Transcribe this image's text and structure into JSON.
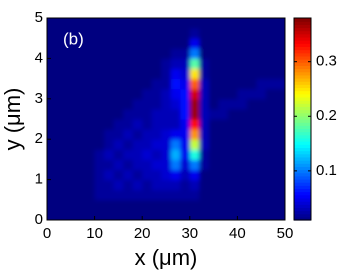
{
  "chart_data": {
    "type": "heatmap",
    "annotation": "(b)",
    "xlabel": "x (μm)",
    "ylabel": "y (μm)",
    "xlim": [
      0,
      50
    ],
    "ylim": [
      0,
      5
    ],
    "xticks": [
      0,
      10,
      20,
      30,
      40,
      50
    ],
    "yticks": [
      0,
      1,
      2,
      3,
      4,
      5
    ],
    "colormap": "jet",
    "clim": [
      0.01,
      0.38
    ],
    "colorbar_ticks": [
      0.1,
      0.2,
      0.3
    ],
    "x": [
      1,
      3,
      5,
      7,
      9,
      11,
      13,
      15,
      17,
      19,
      21,
      23,
      25,
      27,
      29,
      31,
      33,
      35,
      37,
      39,
      41,
      43,
      45,
      47,
      49
    ],
    "y": [
      0.125,
      0.375,
      0.625,
      0.875,
      1.125,
      1.375,
      1.625,
      1.875,
      2.125,
      2.375,
      2.625,
      2.875,
      3.125,
      3.375,
      3.625,
      3.875,
      4.125,
      4.375,
      4.625,
      4.875
    ],
    "z": [
      [
        0.01,
        0.01,
        0.01,
        0.01,
        0.01,
        0.01,
        0.01,
        0.01,
        0.01,
        0.01,
        0.01,
        0.01,
        0.01,
        0.01,
        0.01,
        0.01,
        0.01,
        0.01,
        0.01,
        0.01,
        0.01,
        0.01,
        0.01,
        0.01,
        0.01
      ],
      [
        0.01,
        0.01,
        0.01,
        0.01,
        0.01,
        0.01,
        0.01,
        0.01,
        0.01,
        0.01,
        0.01,
        0.01,
        0.01,
        0.01,
        0.01,
        0.01,
        0.01,
        0.01,
        0.01,
        0.01,
        0.01,
        0.01,
        0.01,
        0.01,
        0.01
      ],
      [
        0.01,
        0.01,
        0.01,
        0.01,
        0.01,
        0.02,
        0.02,
        0.02,
        0.02,
        0.02,
        0.02,
        0.02,
        0.02,
        0.02,
        0.02,
        0.02,
        0.01,
        0.01,
        0.01,
        0.01,
        0.01,
        0.01,
        0.01,
        0.01,
        0.01
      ],
      [
        0.01,
        0.01,
        0.01,
        0.01,
        0.01,
        0.02,
        0.02,
        0.03,
        0.02,
        0.03,
        0.02,
        0.03,
        0.03,
        0.03,
        0.02,
        0.03,
        0.01,
        0.01,
        0.01,
        0.01,
        0.01,
        0.01,
        0.01,
        0.01,
        0.01
      ],
      [
        0.01,
        0.01,
        0.01,
        0.01,
        0.01,
        0.02,
        0.03,
        0.02,
        0.03,
        0.02,
        0.03,
        0.03,
        0.04,
        0.05,
        0.03,
        0.05,
        0.01,
        0.01,
        0.01,
        0.01,
        0.01,
        0.01,
        0.01,
        0.01,
        0.01
      ],
      [
        0.01,
        0.01,
        0.01,
        0.01,
        0.01,
        0.02,
        0.02,
        0.03,
        0.02,
        0.03,
        0.03,
        0.04,
        0.04,
        0.1,
        0.04,
        0.1,
        0.02,
        0.01,
        0.01,
        0.01,
        0.01,
        0.01,
        0.01,
        0.01,
        0.01
      ],
      [
        0.01,
        0.01,
        0.01,
        0.01,
        0.01,
        0.02,
        0.03,
        0.02,
        0.03,
        0.03,
        0.04,
        0.03,
        0.04,
        0.12,
        0.05,
        0.16,
        0.02,
        0.01,
        0.01,
        0.01,
        0.01,
        0.01,
        0.01,
        0.01,
        0.01
      ],
      [
        0.01,
        0.01,
        0.01,
        0.01,
        0.01,
        0.01,
        0.02,
        0.03,
        0.02,
        0.03,
        0.03,
        0.04,
        0.04,
        0.1,
        0.05,
        0.22,
        0.03,
        0.01,
        0.01,
        0.01,
        0.01,
        0.01,
        0.01,
        0.01,
        0.01
      ],
      [
        0.01,
        0.01,
        0.01,
        0.01,
        0.01,
        0.01,
        0.02,
        0.02,
        0.03,
        0.02,
        0.03,
        0.03,
        0.04,
        0.05,
        0.05,
        0.28,
        0.03,
        0.01,
        0.01,
        0.01,
        0.01,
        0.01,
        0.01,
        0.01,
        0.01
      ],
      [
        0.01,
        0.01,
        0.01,
        0.01,
        0.01,
        0.01,
        0.01,
        0.02,
        0.02,
        0.03,
        0.02,
        0.03,
        0.03,
        0.03,
        0.05,
        0.33,
        0.03,
        0.01,
        0.01,
        0.01,
        0.01,
        0.01,
        0.01,
        0.01,
        0.01
      ],
      [
        0.01,
        0.01,
        0.01,
        0.01,
        0.01,
        0.01,
        0.01,
        0.01,
        0.02,
        0.02,
        0.02,
        0.03,
        0.03,
        0.03,
        0.06,
        0.37,
        0.03,
        0.02,
        0.02,
        0.01,
        0.01,
        0.01,
        0.01,
        0.01,
        0.01
      ],
      [
        0.01,
        0.01,
        0.01,
        0.01,
        0.01,
        0.01,
        0.01,
        0.01,
        0.01,
        0.02,
        0.02,
        0.02,
        0.03,
        0.04,
        0.06,
        0.37,
        0.03,
        0.01,
        0.02,
        0.02,
        0.02,
        0.01,
        0.01,
        0.01,
        0.01
      ],
      [
        0.01,
        0.01,
        0.01,
        0.01,
        0.01,
        0.01,
        0.01,
        0.01,
        0.01,
        0.01,
        0.02,
        0.02,
        0.03,
        0.05,
        0.06,
        0.35,
        0.03,
        0.01,
        0.01,
        0.01,
        0.02,
        0.02,
        0.02,
        0.01,
        0.01
      ],
      [
        0.01,
        0.01,
        0.01,
        0.01,
        0.01,
        0.01,
        0.01,
        0.01,
        0.01,
        0.01,
        0.01,
        0.02,
        0.02,
        0.06,
        0.05,
        0.3,
        0.03,
        0.01,
        0.01,
        0.01,
        0.01,
        0.01,
        0.02,
        0.02,
        0.02
      ],
      [
        0.01,
        0.01,
        0.01,
        0.01,
        0.01,
        0.01,
        0.01,
        0.01,
        0.01,
        0.01,
        0.01,
        0.01,
        0.02,
        0.05,
        0.04,
        0.25,
        0.02,
        0.01,
        0.01,
        0.01,
        0.01,
        0.01,
        0.01,
        0.01,
        0.01
      ],
      [
        0.01,
        0.01,
        0.01,
        0.01,
        0.01,
        0.01,
        0.01,
        0.01,
        0.01,
        0.01,
        0.01,
        0.01,
        0.02,
        0.03,
        0.03,
        0.18,
        0.02,
        0.01,
        0.01,
        0.01,
        0.01,
        0.01,
        0.01,
        0.01,
        0.01
      ],
      [
        0.01,
        0.01,
        0.01,
        0.01,
        0.01,
        0.01,
        0.01,
        0.01,
        0.01,
        0.01,
        0.01,
        0.01,
        0.01,
        0.02,
        0.02,
        0.1,
        0.01,
        0.01,
        0.01,
        0.01,
        0.01,
        0.01,
        0.01,
        0.01,
        0.01
      ],
      [
        0.01,
        0.01,
        0.01,
        0.01,
        0.01,
        0.01,
        0.01,
        0.01,
        0.01,
        0.01,
        0.01,
        0.01,
        0.01,
        0.01,
        0.01,
        0.05,
        0.01,
        0.01,
        0.01,
        0.01,
        0.01,
        0.01,
        0.01,
        0.01,
        0.01
      ],
      [
        0.01,
        0.01,
        0.01,
        0.01,
        0.01,
        0.01,
        0.01,
        0.01,
        0.01,
        0.01,
        0.01,
        0.01,
        0.01,
        0.01,
        0.01,
        0.02,
        0.01,
        0.01,
        0.01,
        0.01,
        0.01,
        0.01,
        0.01,
        0.01,
        0.01
      ],
      [
        0.01,
        0.01,
        0.01,
        0.01,
        0.01,
        0.01,
        0.01,
        0.01,
        0.01,
        0.01,
        0.01,
        0.01,
        0.01,
        0.01,
        0.01,
        0.01,
        0.01,
        0.01,
        0.01,
        0.01,
        0.01,
        0.01,
        0.01,
        0.01,
        0.01
      ]
    ]
  }
}
